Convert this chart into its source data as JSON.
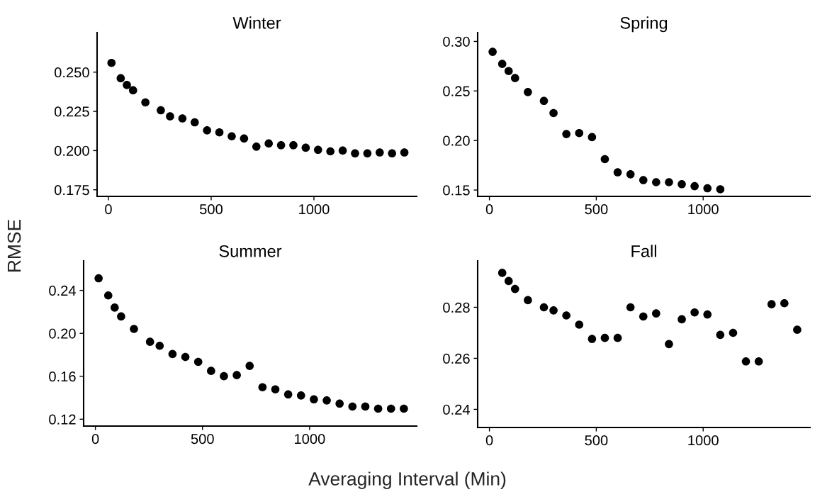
{
  "chart_data": [
    {
      "type": "scatter",
      "title": "Winter",
      "ylabel": "RMSE",
      "marker": "circle",
      "grid": false,
      "x": [
        15,
        60,
        90,
        120,
        180,
        255,
        300,
        360,
        420,
        480,
        540,
        600,
        660,
        720,
        780,
        840,
        900,
        960,
        1020,
        1080,
        1140,
        1200,
        1260,
        1320,
        1380,
        1440
      ],
      "series": [
        {
          "color": "#000000",
          "values": [
            0.2559,
            0.2461,
            0.2418,
            0.2384,
            0.2307,
            0.2257,
            0.2218,
            0.2205,
            0.218,
            0.2129,
            0.2116,
            0.2091,
            0.2077,
            0.2025,
            0.2045,
            0.2034,
            0.2034,
            0.2018,
            0.2005,
            0.1995,
            0.2,
            0.1982,
            0.1982,
            0.1988,
            0.1982,
            0.1988
          ]
        }
      ],
      "xlim": [
        -55,
        1500
      ],
      "xticks": [
        0,
        500,
        1000
      ],
      "ylim": [
        0.1708,
        0.2752
      ],
      "yticks": [
        0.175,
        {
          "value": 0.2,
          "label": "0.200"
        },
        0.225,
        {
          "value": 0.25,
          "label": "0.250"
        }
      ]
    },
    {
      "type": "scatter",
      "title": "Spring",
      "marker": "circle",
      "grid": false,
      "x": [
        15,
        60,
        90,
        120,
        180,
        255,
        300,
        360,
        420,
        480,
        540,
        600,
        660,
        720,
        780,
        840,
        900,
        960,
        1020,
        1080
      ],
      "series": [
        {
          "color": "#000000",
          "values": [
            0.2895,
            0.2773,
            0.2701,
            0.263,
            0.2489,
            0.24,
            0.2277,
            0.2065,
            0.2075,
            0.2034,
            0.1812,
            0.1679,
            0.1659,
            0.16,
            0.1579,
            0.1579,
            0.1559,
            0.1539,
            0.1518,
            0.1508
          ]
        }
      ],
      "xlim": [
        -55,
        1500
      ],
      "xticks": [
        0,
        500,
        1000
      ],
      "ylim": [
        0.1436,
        0.3089
      ],
      "yticks": [
        {
          "value": 0.15,
          "label": "0.15"
        },
        {
          "value": 0.2,
          "label": "0.20"
        },
        0.25,
        {
          "value": 0.3,
          "label": "0.30"
        }
      ]
    },
    {
      "type": "scatter",
      "title": "Summer",
      "marker": "circle",
      "grid": false,
      "x": [
        15,
        60,
        90,
        120,
        180,
        255,
        300,
        360,
        420,
        480,
        540,
        600,
        660,
        720,
        780,
        840,
        900,
        960,
        1020,
        1080,
        1140,
        1200,
        1260,
        1320,
        1380,
        1440
      ],
      "series": [
        {
          "color": "#000000",
          "values": [
            0.2513,
            0.2353,
            0.224,
            0.2157,
            0.2041,
            0.1921,
            0.1884,
            0.1807,
            0.178,
            0.1734,
            0.165,
            0.1601,
            0.1611,
            0.1697,
            0.1498,
            0.1478,
            0.1431,
            0.1421,
            0.1385,
            0.1375,
            0.1345,
            0.1318,
            0.1318,
            0.1298,
            0.1298,
            0.1298
          ]
        }
      ],
      "xlim": [
        -55,
        1500
      ],
      "xticks": [
        0,
        500,
        1000
      ],
      "ylim": [
        0.1136,
        0.2675
      ],
      "yticks": [
        0.12,
        0.16,
        {
          "value": 0.2,
          "label": "0.20"
        },
        0.24
      ]
    },
    {
      "type": "scatter",
      "title": "Fall",
      "xlabel": "Averaging Interval (Min)",
      "marker": "circle",
      "grid": false,
      "x": [
        60,
        90,
        120,
        180,
        255,
        300,
        360,
        420,
        480,
        540,
        600,
        660,
        720,
        780,
        840,
        900,
        960,
        1020,
        1080,
        1140,
        1200,
        1260,
        1320,
        1380,
        1440
      ],
      "series": [
        {
          "color": "#000000",
          "values": [
            0.2935,
            0.2903,
            0.2872,
            0.2828,
            0.28,
            0.2788,
            0.2768,
            0.2732,
            0.2676,
            0.268,
            0.268,
            0.28,
            0.2764,
            0.2776,
            0.2656,
            0.2753,
            0.278,
            0.2772,
            0.2692,
            0.27,
            0.2588,
            0.2588,
            0.2812,
            0.2816,
            0.2712
          ]
        }
      ],
      "xlim": [
        -55,
        1500
      ],
      "xticks": [
        0,
        500,
        1000
      ],
      "ylim": [
        0.2329,
        0.2982
      ],
      "yticks": [
        0.24,
        0.26,
        0.28
      ]
    }
  ]
}
